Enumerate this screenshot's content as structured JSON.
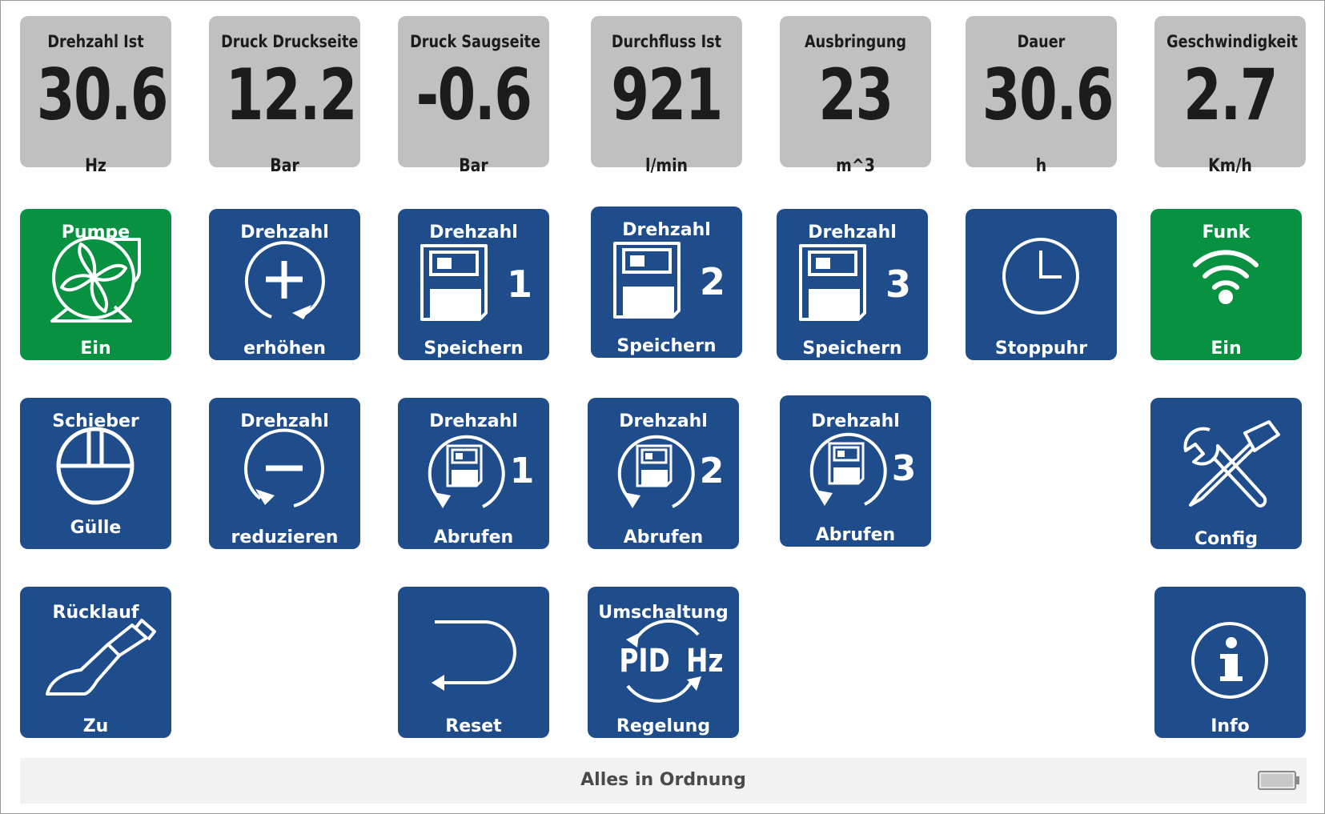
{
  "gauges": [
    {
      "label": "Drehzahl Ist",
      "value": "30.6",
      "unit": "Hz"
    },
    {
      "label": "Druck Druckseite",
      "value": "12.2",
      "unit": "Bar"
    },
    {
      "label": "Druck Saugseite",
      "value": "-0.6",
      "unit": "Bar"
    },
    {
      "label": "Durchfluss Ist",
      "value": "921",
      "unit": "l/min"
    },
    {
      "label": "Ausbringung",
      "value": "23",
      "unit": "m^3"
    },
    {
      "label": "Dauer",
      "value": "30.6",
      "unit": "h"
    },
    {
      "label": "Geschwindigkeit",
      "value": "2.7",
      "unit": "Km/h"
    }
  ],
  "buttons": {
    "pumpe": {
      "top": "Pumpe",
      "bottom": "Ein",
      "icon": "pump-icon",
      "color": "#089141"
    },
    "drehzahl_erhoehen": {
      "top": "Drehzahl",
      "bottom": "erhöhen",
      "icon": "plus-circle-icon"
    },
    "speichern_1": {
      "top": "Drehzahl",
      "bottom": "Speichern",
      "number": "1",
      "icon": "save-icon"
    },
    "speichern_2": {
      "top": "Drehzahl",
      "bottom": "Speichern",
      "number": "2",
      "icon": "save-icon"
    },
    "speichern_3": {
      "top": "Drehzahl",
      "bottom": "Speichern",
      "number": "3",
      "icon": "save-icon"
    },
    "stoppuhr": {
      "bottom": "Stoppuhr",
      "icon": "clock-icon"
    },
    "funk": {
      "top": "Funk",
      "bottom": "Ein",
      "icon": "wifi-icon",
      "color": "#089141"
    },
    "schieber": {
      "top": "Schieber",
      "bottom": "Gülle",
      "icon": "valve-icon"
    },
    "drehzahl_reduzieren": {
      "top": "Drehzahl",
      "bottom": "reduzieren",
      "icon": "minus-circle-icon"
    },
    "abrufen_1": {
      "top": "Drehzahl",
      "bottom": "Abrufen",
      "number": "1",
      "icon": "recall-icon"
    },
    "abrufen_2": {
      "top": "Drehzahl",
      "bottom": "Abrufen",
      "number": "2",
      "icon": "recall-icon"
    },
    "abrufen_3": {
      "top": "Drehzahl",
      "bottom": "Abrufen",
      "number": "3",
      "icon": "recall-icon"
    },
    "config": {
      "bottom": "Config",
      "icon": "tools-icon"
    },
    "ruecklauf": {
      "top": "Rücklauf",
      "bottom": "Zu",
      "icon": "return-valve-icon"
    },
    "reset": {
      "bottom": "Reset",
      "icon": "reset-arrow-icon"
    },
    "umschaltung": {
      "top": "Umschaltung",
      "bottom": "Regelung",
      "left_mode": "PID",
      "right_mode": "Hz",
      "icon": "switch-cycle-icon"
    },
    "info": {
      "bottom": "Info",
      "icon": "info-icon"
    }
  },
  "status": {
    "text": "Alles in Ordnung",
    "icon": "battery-icon"
  },
  "colors": {
    "blue": "#1f4d8c",
    "green": "#089141",
    "gauge": "#c0c0c0"
  }
}
